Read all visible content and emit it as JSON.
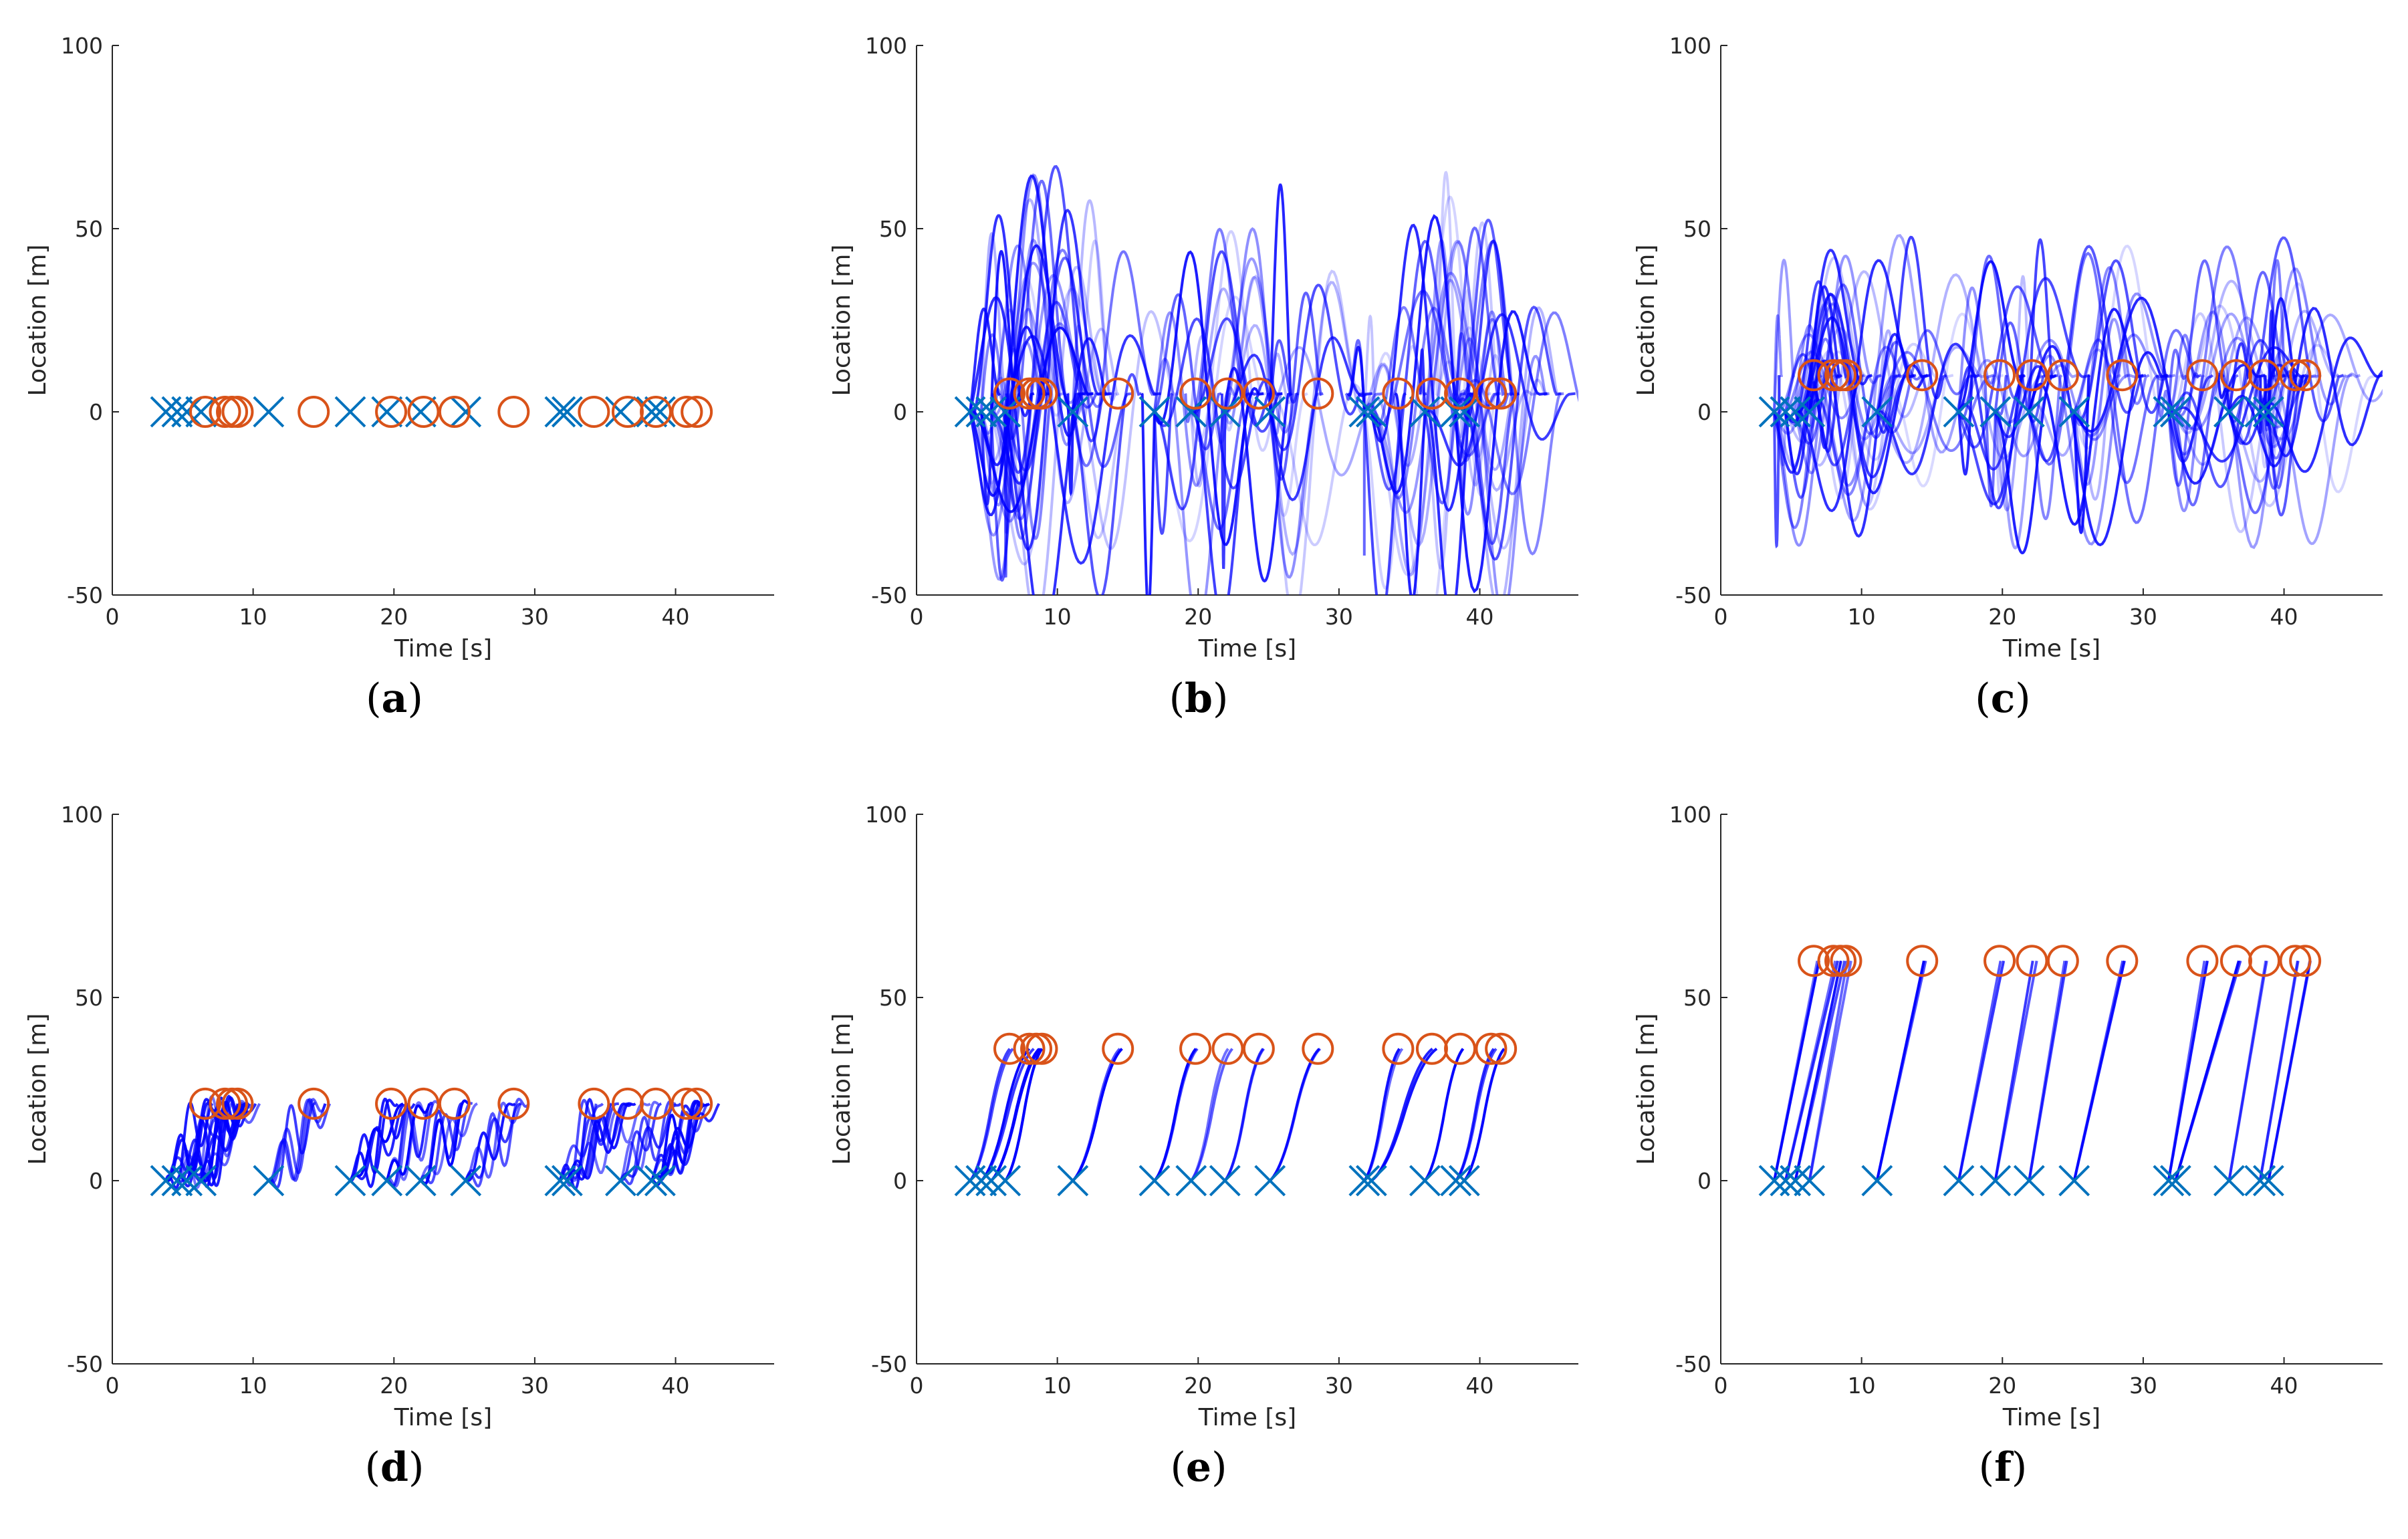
{
  "figure": {
    "colors": {
      "start": "#0072BD",
      "end": "#D95319",
      "trajectory": "#0000FF",
      "axis": "#262626"
    }
  },
  "chart_data": [
    {
      "type": "scatter",
      "panel": "a",
      "caption": "a",
      "xlabel": "Time [s]",
      "ylabel": "Location [m]",
      "xlim": [
        0,
        47
      ],
      "ylim": [
        -50,
        100
      ],
      "xticks": [
        0,
        10,
        20,
        30,
        40
      ],
      "yticks": [
        -50,
        0,
        50,
        100
      ],
      "start_times": [
        3.8,
        4.6,
        5.3,
        6.3,
        11.1,
        16.9,
        19.5,
        21.9,
        25.1,
        31.8,
        32.3,
        36.1,
        38.3,
        38.9
      ],
      "end_times": [
        6.6,
        8.0,
        8.5,
        8.9,
        14.3,
        19.8,
        22.1,
        24.3,
        28.5,
        34.2,
        36.6,
        38.6,
        40.8,
        41.5
      ],
      "start_location": 0,
      "end_location": 0,
      "trajectory_style": "none"
    },
    {
      "type": "line",
      "panel": "b",
      "caption": "b",
      "xlabel": "Time [s]",
      "ylabel": "Location [m]",
      "xlim": [
        0,
        47
      ],
      "ylim": [
        -50,
        100
      ],
      "xticks": [
        0,
        10,
        20,
        30,
        40
      ],
      "yticks": [
        -50,
        0,
        50,
        100
      ],
      "start_times": [
        3.8,
        4.6,
        5.3,
        6.3,
        11.1,
        16.9,
        19.5,
        21.9,
        25.1,
        31.8,
        32.3,
        36.1,
        38.3,
        38.9
      ],
      "end_times": [
        6.6,
        8.0,
        8.5,
        8.9,
        14.3,
        19.8,
        22.1,
        24.3,
        28.5,
        34.2,
        36.6,
        38.6,
        40.8,
        41.5
      ],
      "start_location": 0,
      "end_location": 5,
      "trajectory_style": "oscillating",
      "trajectory_amplitude": 60
    },
    {
      "type": "line",
      "panel": "c",
      "caption": "c",
      "xlabel": "Time [s]",
      "ylabel": "Location [m]",
      "xlim": [
        0,
        47
      ],
      "ylim": [
        -50,
        100
      ],
      "xticks": [
        0,
        10,
        20,
        30,
        40
      ],
      "yticks": [
        -50,
        0,
        50,
        100
      ],
      "start_times": [
        3.8,
        4.6,
        5.3,
        6.3,
        11.1,
        16.9,
        19.5,
        21.9,
        25.1,
        31.8,
        32.3,
        36.1,
        38.3,
        38.9
      ],
      "end_times": [
        6.6,
        8.0,
        8.5,
        8.9,
        14.3,
        19.8,
        22.1,
        24.3,
        28.5,
        34.2,
        36.6,
        38.6,
        40.8,
        41.5
      ],
      "start_location": 0,
      "end_location": 10,
      "trajectory_style": "oscillating",
      "trajectory_amplitude": 40
    },
    {
      "type": "line",
      "panel": "d",
      "caption": "d",
      "xlabel": "Time [s]",
      "ylabel": "Location [m]",
      "xlim": [
        0,
        47
      ],
      "ylim": [
        -50,
        100
      ],
      "xticks": [
        0,
        10,
        20,
        30,
        40
      ],
      "yticks": [
        -50,
        0,
        50,
        100
      ],
      "start_times": [
        3.8,
        4.6,
        5.3,
        6.3,
        11.1,
        16.9,
        19.5,
        21.9,
        25.1,
        31.8,
        32.3,
        36.1,
        38.3,
        38.9
      ],
      "end_times": [
        6.6,
        8.0,
        8.5,
        8.9,
        14.3,
        19.8,
        22.1,
        24.3,
        28.5,
        34.2,
        36.6,
        38.6,
        40.8,
        41.5
      ],
      "start_location": 0,
      "end_location": 21,
      "trajectory_style": "wiggly",
      "trajectory_amplitude": 10
    },
    {
      "type": "line",
      "panel": "e",
      "caption": "e",
      "xlabel": "Time [s]",
      "ylabel": "Location [m]",
      "xlim": [
        0,
        47
      ],
      "ylim": [
        -50,
        100
      ],
      "xticks": [
        0,
        10,
        20,
        30,
        40
      ],
      "yticks": [
        -50,
        0,
        50,
        100
      ],
      "start_times": [
        3.8,
        4.6,
        5.3,
        6.3,
        11.1,
        16.9,
        19.5,
        21.9,
        25.1,
        31.8,
        32.3,
        36.1,
        38.3,
        38.9
      ],
      "end_times": [
        6.6,
        8.0,
        8.5,
        8.9,
        14.3,
        19.8,
        22.1,
        24.3,
        28.5,
        34.2,
        36.6,
        38.6,
        40.8,
        41.5
      ],
      "start_location": 0,
      "end_location": 36,
      "trajectory_style": "curved"
    },
    {
      "type": "line",
      "panel": "f",
      "caption": "f",
      "xlabel": "Time [s]",
      "ylabel": "Location [m]",
      "xlim": [
        0,
        47
      ],
      "ylim": [
        -50,
        100
      ],
      "xticks": [
        0,
        10,
        20,
        30,
        40
      ],
      "yticks": [
        -50,
        0,
        50,
        100
      ],
      "start_times": [
        3.8,
        4.6,
        5.3,
        6.3,
        11.1,
        16.9,
        19.5,
        21.9,
        25.1,
        31.8,
        32.3,
        36.1,
        38.3,
        38.9
      ],
      "end_times": [
        6.6,
        8.0,
        8.5,
        8.9,
        14.3,
        19.8,
        22.1,
        24.3,
        28.5,
        34.2,
        36.6,
        38.6,
        40.8,
        41.5
      ],
      "start_location": 0,
      "end_location": 60,
      "trajectory_style": "straight"
    }
  ]
}
